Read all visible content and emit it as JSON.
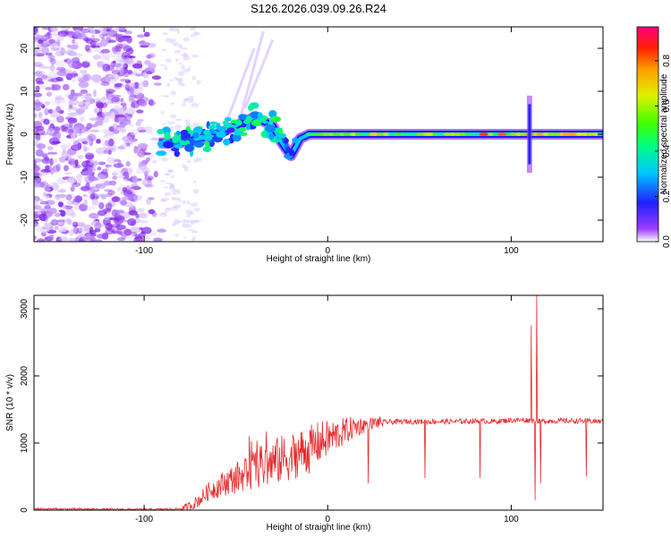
{
  "chart_data": [
    {
      "type": "heatmap",
      "title": "S126.2026.039.09.26.R24",
      "xlabel": "Height of straight line (km)",
      "ylabel": "Frequency (Hz)",
      "xlim": [
        -160,
        150
      ],
      "ylim": [
        -25,
        25
      ],
      "xticks": [
        -100,
        0,
        100
      ],
      "yticks": [
        -20,
        -10,
        0,
        10,
        20
      ],
      "colorbar": {
        "label": "Normalized spectral amplitude",
        "range": [
          0,
          0.95
        ],
        "ticks": [
          0,
          0.2,
          0.4,
          0.6,
          0.8
        ],
        "tick_labels": [
          "0.0",
          "0.2",
          "0.4",
          "0.6",
          "0.8"
        ]
      },
      "features": {
        "noise_region_x": [
          -160,
          -90
        ],
        "track": [
          [
            -90,
            -2
          ],
          [
            -80,
            -2
          ],
          [
            -70,
            -1
          ],
          [
            -60,
            0
          ],
          [
            -50,
            2
          ],
          [
            -40,
            4
          ],
          [
            -30,
            2
          ],
          [
            -25,
            -2
          ],
          [
            -20,
            -5
          ],
          [
            -15,
            -1
          ],
          [
            -10,
            0
          ],
          [
            0,
            0
          ],
          [
            50,
            0
          ],
          [
            100,
            0
          ],
          [
            150,
            0
          ]
        ],
        "spikes_x": [
          110
        ]
      }
    },
    {
      "type": "line",
      "xlabel": "Height of straight line (km)",
      "ylabel": "SNR (10 * v/v)",
      "xlim": [
        -160,
        150
      ],
      "ylim": [
        0,
        3200
      ],
      "xticks": [
        -100,
        0,
        100
      ],
      "yticks": [
        0,
        1000,
        2000,
        3000
      ],
      "series": [
        {
          "name": "SNR",
          "color": "#e8292b",
          "x": [
            -160,
            -150,
            -140,
            -130,
            -120,
            -110,
            -100,
            -90,
            -80,
            -75,
            -70,
            -65,
            -60,
            -55,
            -50,
            -45,
            -40,
            -35,
            -30,
            -25,
            -20,
            -15,
            -10,
            -5,
            0,
            5,
            10,
            15,
            20,
            25,
            30,
            40,
            50,
            60,
            70,
            80,
            90,
            100,
            105,
            110,
            115,
            120,
            130,
            140,
            150
          ],
          "values": [
            20,
            18,
            15,
            15,
            12,
            12,
            10,
            12,
            20,
            60,
            150,
            280,
            350,
            420,
            480,
            550,
            620,
            650,
            700,
            760,
            800,
            860,
            900,
            1000,
            1060,
            1120,
            1180,
            1240,
            1270,
            1300,
            1310,
            1320,
            1320,
            1320,
            1320,
            1330,
            1320,
            1340,
            1340,
            1340,
            1320,
            1330,
            1330,
            1330,
            1320
          ]
        }
      ],
      "drops": [
        [
          22,
          400
        ],
        [
          53,
          480
        ],
        [
          83,
          480
        ],
        [
          113,
          150
        ],
        [
          116,
          400
        ],
        [
          141,
          500
        ]
      ],
      "peaks": [
        [
          111,
          2750
        ],
        [
          114,
          3200
        ]
      ]
    }
  ]
}
